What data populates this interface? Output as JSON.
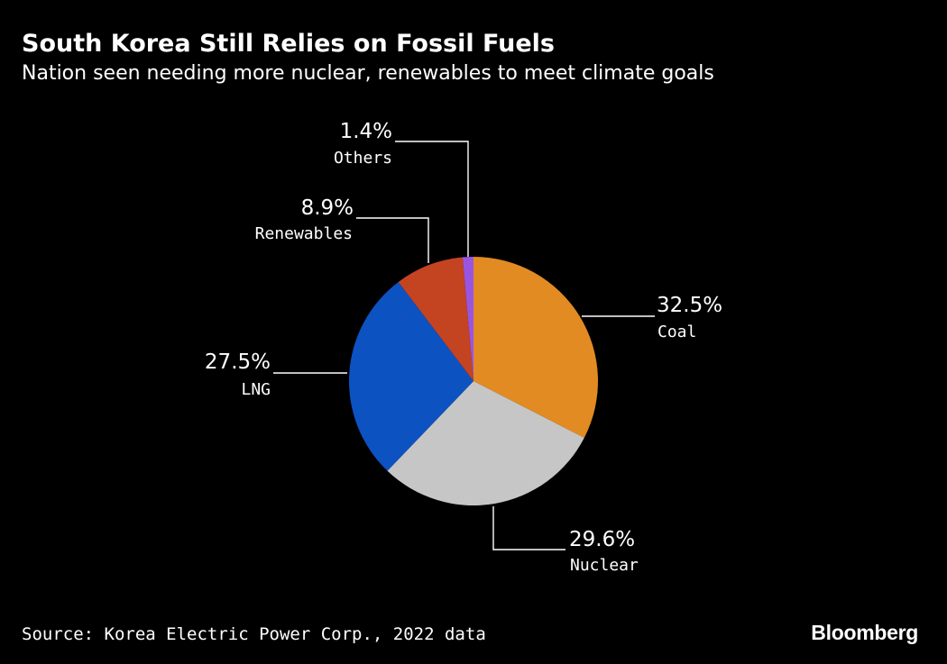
{
  "chart_data": {
    "type": "pie",
    "title": "South Korea Still Relies on Fossil Fuels",
    "subtitle": "Nation seen needing more nuclear, renewables to meet climate goals",
    "slices": [
      {
        "label": "Coal",
        "value": 32.5,
        "display": "32.5%",
        "color": "#e28b22"
      },
      {
        "label": "Nuclear",
        "value": 29.6,
        "display": "29.6%",
        "color": "#c6c6c6"
      },
      {
        "label": "LNG",
        "value": 27.5,
        "display": "27.5%",
        "color": "#0d52c1"
      },
      {
        "label": "Renewables",
        "value": 8.9,
        "display": "8.9%",
        "color": "#c44321"
      },
      {
        "label": "Others",
        "value": 1.4,
        "display": "1.4%",
        "color": "#9a55e0"
      }
    ],
    "start": "12 o'clock",
    "direction": "clockwise"
  },
  "footer": {
    "source": "Source: Korea Electric Power Corp., 2022 data",
    "brand": "Bloomberg"
  }
}
